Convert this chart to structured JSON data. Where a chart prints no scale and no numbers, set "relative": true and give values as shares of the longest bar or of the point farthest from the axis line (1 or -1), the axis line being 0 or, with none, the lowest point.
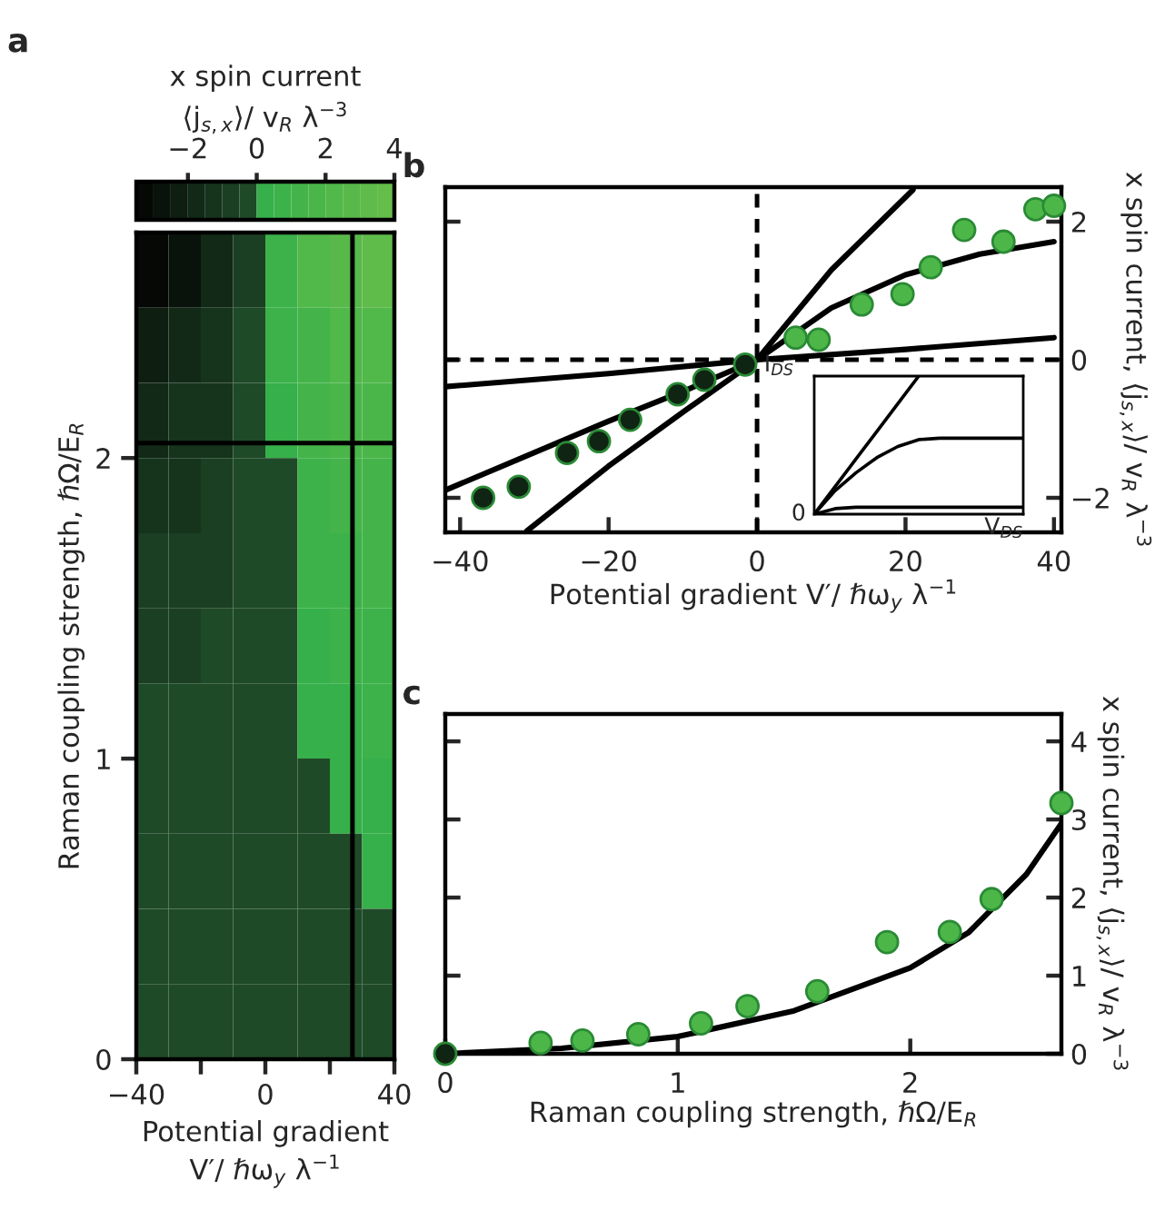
{
  "chart_data": [
    {
      "type": "heatmap",
      "title": "a",
      "clabel": "x spin current\n⟨j$_{s,x}$⟩/ v$_{R}$ λ$^{−3}$",
      "cells": [
        [
          -3.3,
          -2.8,
          -2.0,
          -0.7,
          0.7,
          2.0,
          2.8,
          3.3
        ],
        [
          -2.3,
          -2.0,
          -1.4,
          -0.5,
          0.5,
          1.4,
          2.0,
          2.3
        ],
        [
          -1.7,
          -1.5,
          -1.1,
          -0.4,
          0.4,
          1.1,
          1.5,
          1.7
        ],
        [
          -1.3,
          -1.1,
          -0.8,
          -0.3,
          -0.1,
          0.8,
          1.1,
          1.3
        ],
        [
          -1.0,
          -0.8,
          -0.6,
          -0.2,
          -0.1,
          0.6,
          0.8,
          1.0
        ],
        [
          -0.7,
          -0.6,
          -0.4,
          -0.2,
          -0.1,
          0.4,
          0.6,
          0.7
        ],
        [
          -0.5,
          -0.4,
          -0.3,
          -0.1,
          -0.1,
          0.3,
          0.4,
          0.5
        ],
        [
          -0.3,
          -0.2,
          -0.2,
          -0.1,
          -0.1,
          -0.1,
          0.2,
          0.3
        ],
        [
          -0.2,
          -0.1,
          -0.1,
          -0.1,
          -0.1,
          -0.1,
          -0.1,
          0.2
        ],
        [
          -0.1,
          -0.1,
          -0.1,
          -0.1,
          -0.1,
          -0.1,
          -0.1,
          -0.1
        ],
        [
          -0.1,
          -0.1,
          -0.1,
          -0.1,
          -0.1,
          -0.1,
          -0.1,
          -0.1
        ]
      ],
      "clim": [
        -3.5,
        4
      ],
      "cticks": [
        -2,
        0,
        2,
        4
      ],
      "xlim": [
        -40,
        40
      ],
      "ylim": [
        0,
        2.75
      ],
      "xticks": [
        -40,
        {
          "value": -20,
          "label": null
        },
        0,
        {
          "value": 20,
          "label": null
        },
        40
      ],
      "yticks": [
        0,
        1,
        2
      ],
      "xlabel": "Potential gradient\nV′/ ℏω$_{y}$ λ$^{−1}$",
      "ylabel": "Raman coupling strength, ℏΩ/E$_{R}$",
      "ref_lines": [
        {
          "axis": "y",
          "value": 2.05,
          "color": "#000000"
        },
        {
          "axis": "x",
          "value": 27,
          "color": "#000000"
        }
      ]
    },
    {
      "type": "scatter",
      "title": "b",
      "series": [
        {
          "type": "scatter",
          "marker": "circle",
          "color": "#0f2413",
          "x": [
            -36.9,
            -32.1,
            -25.6,
            -21.3,
            -17.1,
            -10.7,
            -7.1,
            -1.6
          ],
          "values": [
            -2.0,
            -1.84,
            -1.35,
            -1.18,
            -0.87,
            -0.5,
            -0.29,
            -0.07
          ]
        },
        {
          "type": "scatter",
          "marker": "circle",
          "color": "#4cb748",
          "x": [
            5.2,
            8.3,
            14.1,
            19.6,
            23.4,
            27.9,
            33.2,
            37.5,
            40.0
          ],
          "values": [
            0.32,
            0.29,
            0.8,
            0.95,
            1.34,
            1.88,
            1.71,
            2.18,
            2.23
          ]
        },
        {
          "type": "line",
          "color": "#000000",
          "x": [
            -31,
            -20,
            -10,
            0,
            10,
            21
          ],
          "values": [
            -2.48,
            -1.54,
            -0.76,
            0,
            1.3,
            2.46
          ]
        },
        {
          "type": "line",
          "color": "#000000",
          "x": [
            -42,
            -20,
            -10,
            0,
            10,
            20,
            30,
            40
          ],
          "values": [
            -1.89,
            -0.89,
            -0.46,
            0,
            0.75,
            1.23,
            1.53,
            1.71
          ]
        },
        {
          "type": "line",
          "color": "#000000",
          "x": [
            -42,
            -20,
            0,
            20,
            40
          ],
          "values": [
            -0.39,
            -0.2,
            0,
            0.15,
            0.32
          ]
        }
      ],
      "xlim": [
        -42,
        41
      ],
      "ylim": [
        -2.5,
        2.5
      ],
      "xticks": [
        -40,
        -20,
        0,
        20,
        40
      ],
      "yticks": [
        -2,
        0,
        2
      ],
      "xlabel": "Potential gradient V′/ ℏω$_{y}$ λ$^{−1}$",
      "ylabel": "x spin current, ⟨j$_{s,x}$⟩/ v$_{R}$ λ$^{−3}$",
      "ref_lines": [
        {
          "axis": "x",
          "value": 0,
          "line_style": "dashed"
        },
        {
          "axis": "y",
          "value": 0,
          "line_style": "dashed"
        }
      ]
    },
    {
      "type": "line",
      "relative": true,
      "categories": [
        null,
        null,
        null,
        null,
        null,
        null,
        null,
        null,
        null,
        null,
        null
      ],
      "series": [
        {
          "color": "#000000",
          "values": [
            0,
            0.2,
            0.4,
            0.6,
            0.8,
            1.0,
            null,
            null,
            null,
            null,
            null
          ]
        },
        {
          "color": "#000000",
          "values": [
            0,
            0.17,
            0.3,
            0.41,
            0.49,
            0.54,
            0.55,
            0.55,
            0.55,
            0.55,
            0.55
          ]
        },
        {
          "color": "#000000",
          "values": [
            0,
            0.04,
            0.05,
            0.05,
            0.05,
            0.05,
            0.05,
            0.05,
            0.05,
            0.05,
            0.05
          ]
        }
      ],
      "xlabel": "V$_{DS}$",
      "ylabel": "I$_{DS}$",
      "annotations": [
        "0"
      ]
    },
    {
      "type": "scatter",
      "title": "c",
      "series": [
        {
          "type": "scatter",
          "marker": "circle",
          "color": "#4cb748",
          "colors": [
            "#0f2413",
            "#4cb748",
            "#4cb748",
            "#4cb748",
            "#4cb748",
            "#4cb748",
            "#4cb748",
            "#4cb748",
            "#4cb748",
            "#4cb748",
            "#4cb748"
          ],
          "x": [
            0,
            0.41,
            0.59,
            0.83,
            1.1,
            1.3,
            1.6,
            1.9,
            2.17,
            2.35,
            2.65
          ],
          "values": [
            0,
            0.14,
            0.17,
            0.25,
            0.39,
            0.61,
            0.8,
            1.43,
            1.56,
            1.98,
            3.21
          ]
        },
        {
          "type": "line",
          "color": "#000000",
          "x": [
            0,
            0.5,
            1.0,
            1.5,
            2.0,
            2.25,
            2.5,
            2.65
          ],
          "values": [
            0,
            0.07,
            0.22,
            0.55,
            1.1,
            1.55,
            2.3,
            2.95
          ]
        }
      ],
      "xlim": [
        0,
        2.65
      ],
      "ylim": [
        0,
        4.35
      ],
      "xticks": [
        0,
        1,
        2
      ],
      "yticks": [
        0,
        1,
        2,
        3,
        4
      ],
      "xlabel": "Raman coupling strength, ℏΩ/E$_{R}$",
      "ylabel": "x spin current, ⟨j$_{s,x}$⟩/ v$_{R}$ λ$^{−3}$"
    }
  ]
}
